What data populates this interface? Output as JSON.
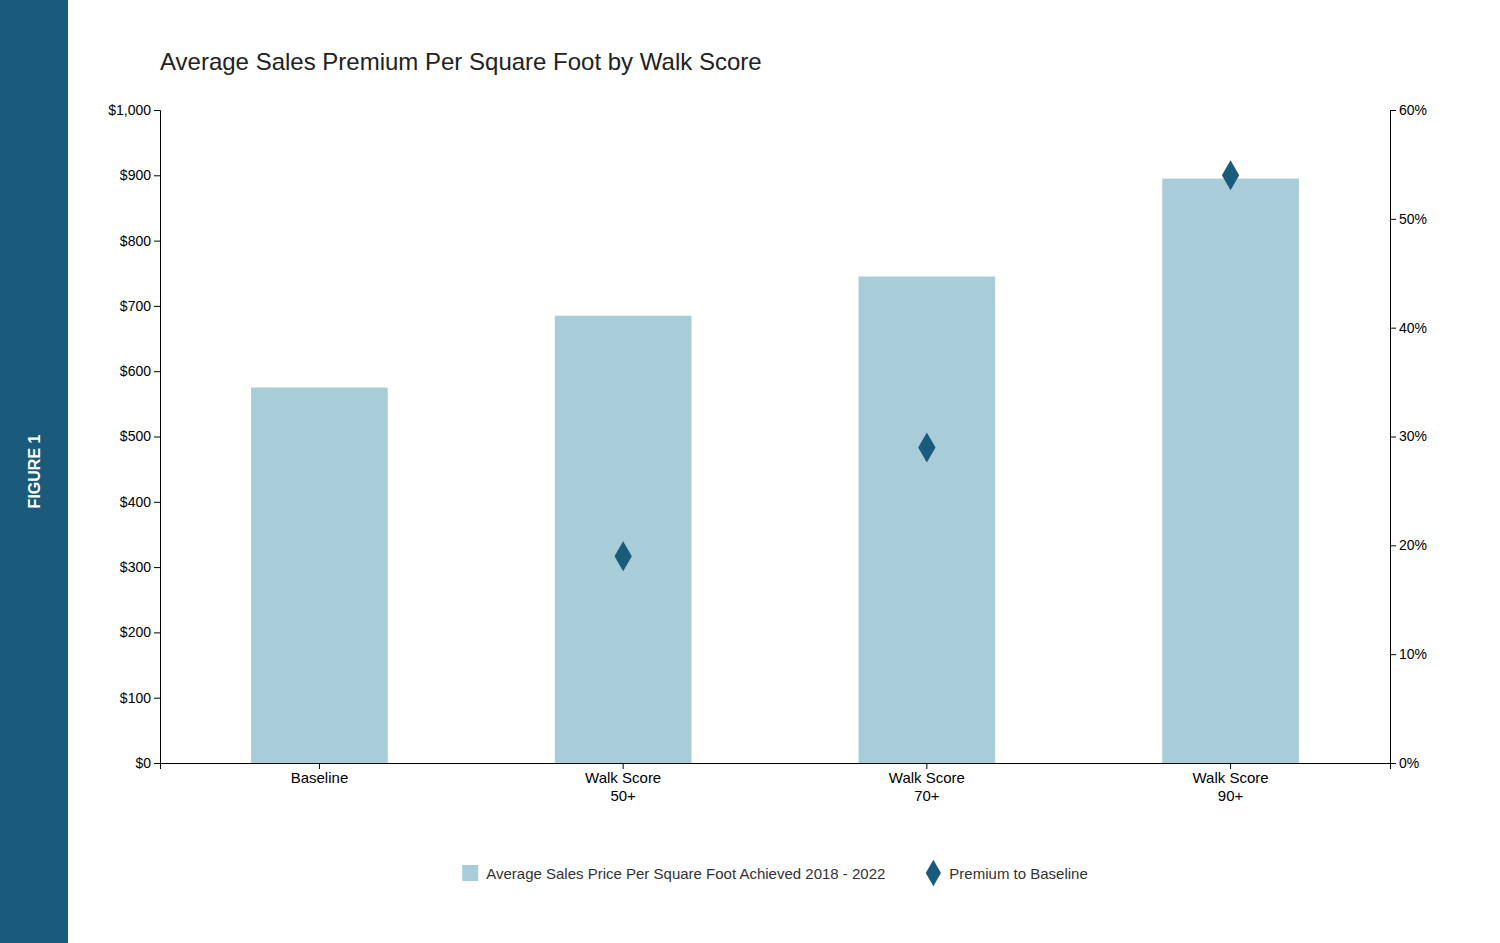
{
  "chart_data": {
    "type": "bar",
    "title": "Average Sales Premium Per Square Foot by Walk Score",
    "annotations": [
      "FIGURE 1"
    ],
    "categories": [
      "Baseline",
      "Walk Score\n50+",
      "Walk Score\n70+",
      "Walk Score\n90+"
    ],
    "series": [
      {
        "name": "Average Sales Price Per Square Foot Achieved 2018 - 2022",
        "type": "bar",
        "color": "#a8cdd8",
        "values": [
          575,
          685,
          745,
          895
        ]
      },
      {
        "name": "Premium to Baseline",
        "type": "scatter",
        "marker": "diamond",
        "color": "#1a5a7a",
        "axis": "y2",
        "values": [
          null,
          0.19,
          0.29,
          0.54
        ]
      }
    ],
    "ylim": [
      0,
      1000
    ],
    "yticks": [
      {
        "value": 0,
        "label": "$0"
      },
      {
        "value": 100,
        "label": "$100"
      },
      {
        "value": 200,
        "label": "$200"
      },
      {
        "value": 300,
        "label": "$300"
      },
      {
        "value": 400,
        "label": "$400"
      },
      {
        "value": 500,
        "label": "$500"
      },
      {
        "value": 600,
        "label": "$600"
      },
      {
        "value": 700,
        "label": "$700"
      },
      {
        "value": 800,
        "label": "$800"
      },
      {
        "value": 900,
        "label": "$900"
      },
      {
        "value": 1000,
        "label": "$1,000"
      }
    ],
    "y2lim": [
      0.0,
      0.6
    ],
    "y2ticks": [
      {
        "value": 0.0,
        "label": "0%"
      },
      {
        "value": 0.1,
        "label": "10%"
      },
      {
        "value": 0.2,
        "label": "20%"
      },
      {
        "value": 0.3,
        "label": "30%"
      },
      {
        "value": 0.4,
        "label": "40%"
      },
      {
        "value": 0.5,
        "label": "50%"
      },
      {
        "value": 0.6,
        "label": "60%"
      }
    ],
    "grid": false,
    "legend": "bottom"
  }
}
